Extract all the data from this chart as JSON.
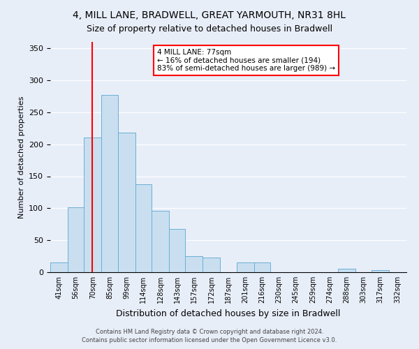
{
  "title": "4, MILL LANE, BRADWELL, GREAT YARMOUTH, NR31 8HL",
  "subtitle": "Size of property relative to detached houses in Bradwell",
  "xlabel": "Distribution of detached houses by size in Bradwell",
  "ylabel": "Number of detached properties",
  "bar_labels": [
    "41sqm",
    "56sqm",
    "70sqm",
    "85sqm",
    "99sqm",
    "114sqm",
    "128sqm",
    "143sqm",
    "157sqm",
    "172sqm",
    "187sqm",
    "201sqm",
    "216sqm",
    "230sqm",
    "245sqm",
    "259sqm",
    "274sqm",
    "288sqm",
    "303sqm",
    "317sqm",
    "332sqm"
  ],
  "bar_values": [
    15,
    102,
    210,
    277,
    218,
    137,
    96,
    68,
    25,
    23,
    0,
    15,
    15,
    0,
    0,
    0,
    0,
    5,
    0,
    3,
    0
  ],
  "bar_color": "#c9dff0",
  "bar_edge_color": "#6aaed6",
  "vline_x": 77,
  "bin_edges": [
    41,
    56,
    70,
    85,
    99,
    114,
    128,
    143,
    157,
    172,
    187,
    201,
    216,
    230,
    245,
    259,
    274,
    288,
    303,
    317,
    332,
    347
  ],
  "ylim": [
    0,
    360
  ],
  "yticks": [
    0,
    50,
    100,
    150,
    200,
    250,
    300,
    350
  ],
  "annotation_title": "4 MILL LANE: 77sqm",
  "annotation_line1": "← 16% of detached houses are smaller (194)",
  "annotation_line2": "83% of semi-detached houses are larger (989) →",
  "footer1": "Contains HM Land Registry data © Crown copyright and database right 2024.",
  "footer2": "Contains public sector information licensed under the Open Government Licence v3.0.",
  "background_color": "#e8eef8",
  "plot_bg_color": "#e8eef8",
  "grid_color": "#ffffff"
}
